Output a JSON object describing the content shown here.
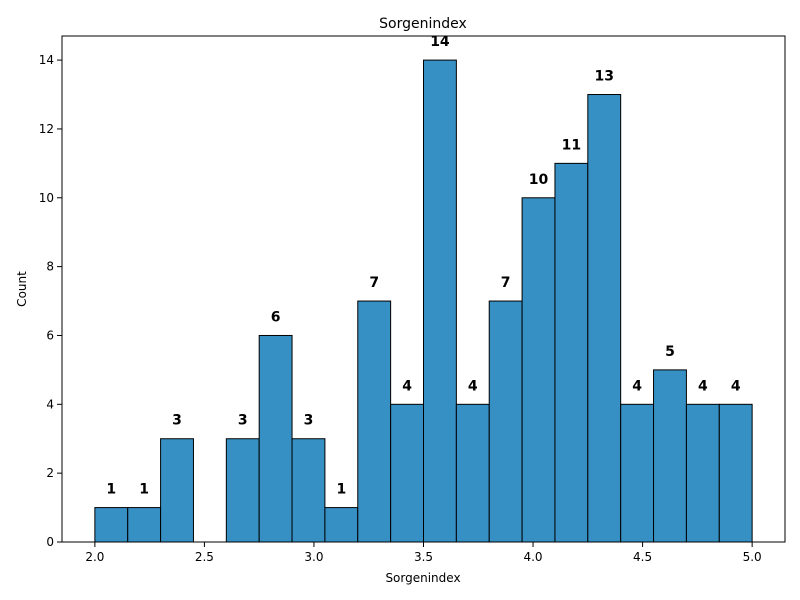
{
  "chart_data": {
    "type": "bar",
    "title": "Sorgenindex",
    "xlabel": "Sorgenindex",
    "ylabel": "Count",
    "bin_edges": [
      2.0,
      2.15,
      2.3,
      2.45,
      2.6,
      2.75,
      2.9,
      3.05,
      3.2,
      3.35,
      3.5,
      3.65,
      3.8,
      3.95,
      4.1,
      4.25,
      4.4,
      4.55,
      4.7,
      4.85,
      5.0
    ],
    "values": [
      1,
      1,
      3,
      0,
      3,
      6,
      3,
      1,
      7,
      4,
      14,
      4,
      7,
      10,
      11,
      13,
      4,
      5,
      4,
      4
    ],
    "xlim": [
      1.85,
      5.15
    ],
    "ylim": [
      0,
      14.7
    ],
    "xticks": [
      2.0,
      2.5,
      3.0,
      3.5,
      4.0,
      4.5,
      5.0
    ],
    "xtick_labels": [
      "2.0",
      "2.5",
      "3.0",
      "3.5",
      "4.0",
      "4.5",
      "5.0"
    ],
    "yticks": [
      0,
      2,
      4,
      6,
      8,
      10,
      12,
      14
    ],
    "ytick_labels": [
      "0",
      "2",
      "4",
      "6",
      "8",
      "10",
      "12",
      "14"
    ],
    "bar_color": "#3690c4",
    "edge_color": "#000000",
    "grid": false
  }
}
